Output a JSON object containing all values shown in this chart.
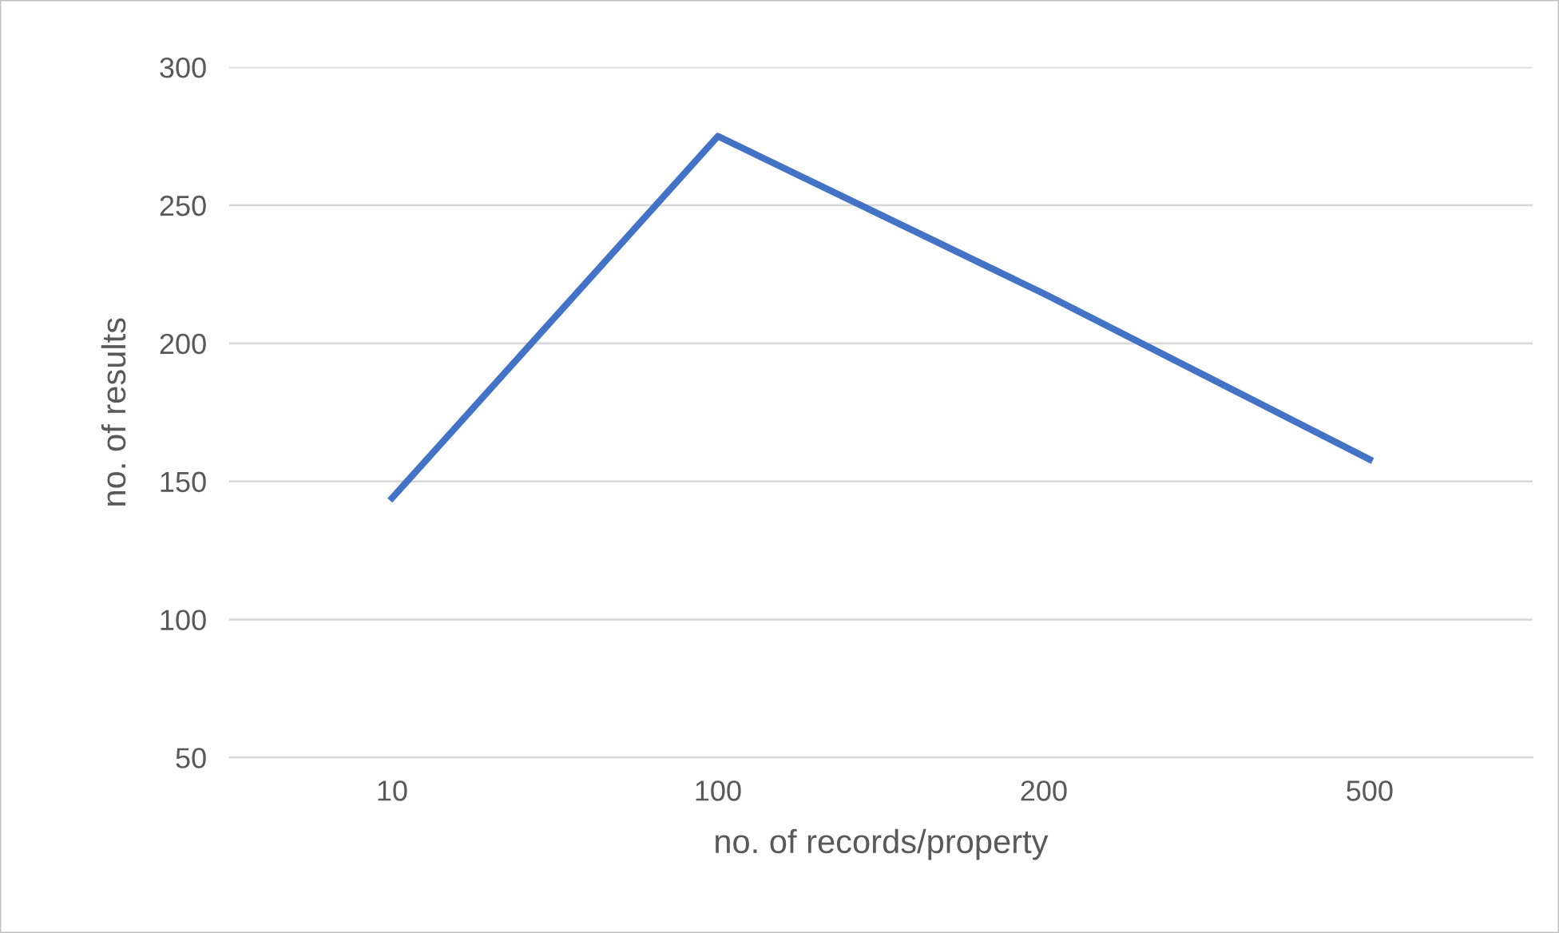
{
  "chart_data": {
    "type": "line",
    "xlabel": "no. of records/property",
    "ylabel": "no. of results",
    "categories": [
      "10",
      "100",
      "200",
      "500"
    ],
    "series": [
      {
        "color": "#4472c4",
        "values": [
          144,
          275,
          218,
          158
        ]
      }
    ],
    "ylim": [
      50,
      300
    ],
    "yticks": [
      50,
      100,
      150,
      200,
      250,
      300
    ],
    "grid": "y",
    "marker": "none",
    "line_style": "solid",
    "legend": false
  }
}
